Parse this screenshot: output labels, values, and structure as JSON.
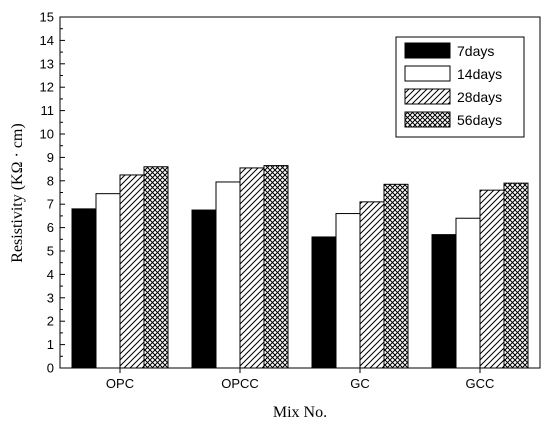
{
  "chart_data": {
    "type": "bar",
    "title": "",
    "xlabel": "Mix No.",
    "ylabel": "Resistivity (KΩ · cm)",
    "ylim": [
      0,
      15
    ],
    "yticks": [
      0,
      1,
      2,
      3,
      4,
      5,
      6,
      7,
      8,
      9,
      10,
      11,
      12,
      13,
      14,
      15
    ],
    "categories": [
      "OPC",
      "OPCC",
      "GC",
      "GCC"
    ],
    "legend_position": "top-right",
    "grid": false,
    "series": [
      {
        "name": "7days",
        "fill": "solid-black",
        "values": [
          6.8,
          6.75,
          5.6,
          5.7
        ]
      },
      {
        "name": "14days",
        "fill": "white",
        "values": [
          7.45,
          7.95,
          6.6,
          6.4
        ]
      },
      {
        "name": "28days",
        "fill": "diagonal-hatch",
        "values": [
          8.25,
          8.55,
          7.1,
          7.6
        ]
      },
      {
        "name": "56days",
        "fill": "cross-hatch",
        "values": [
          8.6,
          8.65,
          7.85,
          7.9
        ]
      }
    ]
  }
}
